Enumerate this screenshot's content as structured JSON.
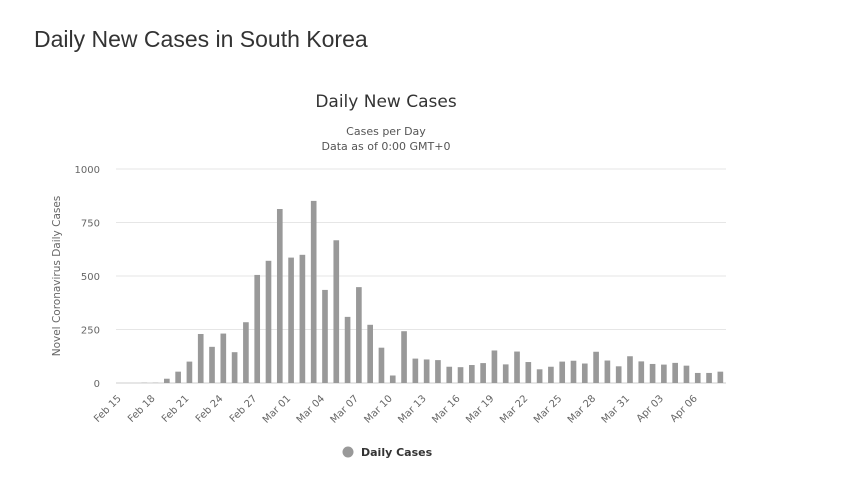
{
  "page": {
    "heading": "Daily New Cases in South Korea"
  },
  "chart_data": {
    "type": "bar",
    "title": "Daily New Cases",
    "subtitle_lines": [
      "Cases per Day",
      "Data as of 0:00 GMT+0"
    ],
    "xlabel": "",
    "ylabel": "Novel Coronavirus Daily Cases",
    "ylim": [
      0,
      1000
    ],
    "yticks": [
      0,
      250,
      500,
      750,
      1000
    ],
    "grid": true,
    "legend": "bottom-center",
    "bar_color": "#999999",
    "categories": [
      "Feb 15",
      "Feb 16",
      "Feb 17",
      "Feb 18",
      "Feb 19",
      "Feb 20",
      "Feb 21",
      "Feb 22",
      "Feb 23",
      "Feb 24",
      "Feb 25",
      "Feb 26",
      "Feb 27",
      "Feb 28",
      "Feb 29",
      "Mar 01",
      "Mar 02",
      "Mar 03",
      "Mar 04",
      "Mar 05",
      "Mar 06",
      "Mar 07",
      "Mar 08",
      "Mar 09",
      "Mar 10",
      "Mar 11",
      "Mar 12",
      "Mar 13",
      "Mar 14",
      "Mar 15",
      "Mar 16",
      "Mar 17",
      "Mar 18",
      "Mar 19",
      "Mar 20",
      "Mar 21",
      "Mar 22",
      "Mar 23",
      "Mar 24",
      "Mar 25",
      "Mar 26",
      "Mar 27",
      "Mar 28",
      "Mar 29",
      "Mar 30",
      "Mar 31",
      "Apr 01",
      "Apr 02",
      "Apr 03",
      "Apr 04",
      "Apr 05",
      "Apr 06",
      "Apr 07",
      "Apr 08"
    ],
    "x_tick_labels": [
      "Feb 15",
      "Feb 18",
      "Feb 21",
      "Feb 24",
      "Feb 27",
      "Mar 01",
      "Mar 04",
      "Mar 07",
      "Mar 10",
      "Mar 13",
      "Mar 16",
      "Mar 19",
      "Mar 22",
      "Mar 25",
      "Mar 28",
      "Mar 31",
      "Apr 03",
      "Apr 06"
    ],
    "series": [
      {
        "name": "Daily Cases",
        "values": [
          0,
          0,
          1,
          1,
          20,
          53,
          100,
          229,
          169,
          231,
          144,
          284,
          505,
          571,
          813,
          586,
          599,
          851,
          435,
          667,
          309,
          448,
          272,
          165,
          35,
          242,
          114,
          110,
          107,
          76,
          74,
          84,
          93,
          152,
          87,
          147,
          98,
          64,
          76,
          100,
          104,
          91,
          146,
          105,
          78,
          125,
          101,
          89,
          86,
          94,
          81,
          47,
          47,
          53
        ]
      }
    ]
  }
}
